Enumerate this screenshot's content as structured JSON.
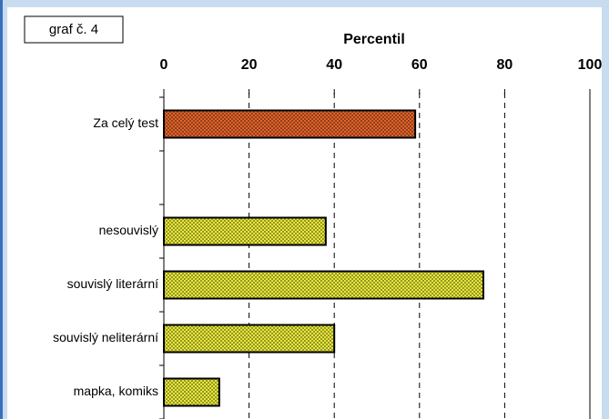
{
  "chart_data": {
    "type": "barh",
    "title": "Percentil",
    "annotation": "graf č. 4",
    "categories": [
      "Za celý test",
      null,
      "nesouvislý",
      "souvislý literární",
      "souvislý neliterární",
      "mapka, komiks"
    ],
    "values": [
      59,
      null,
      38,
      75,
      40,
      13
    ],
    "colors": [
      "#e0622a",
      null,
      "#e6e63a",
      "#e6e63a",
      "#e6e63a",
      "#e6e63a"
    ],
    "xlim": [
      0,
      100
    ],
    "xticks": [
      0,
      20,
      40,
      60,
      80,
      100
    ],
    "grid": true
  }
}
